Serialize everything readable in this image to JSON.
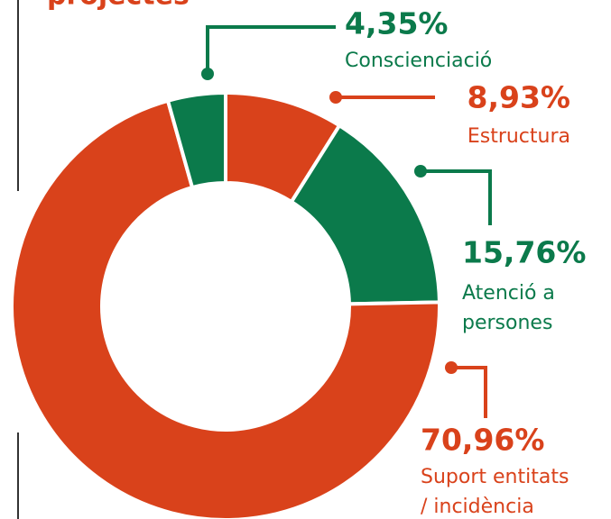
{
  "chart_data": {
    "type": "donut",
    "title": "projectes",
    "categories": [
      [
        "Estructura"
      ],
      [
        "Atenció a",
        "persones"
      ],
      [
        "Suport entitats",
        "/ incidència"
      ],
      [
        "Conscienciació"
      ]
    ],
    "values": [
      8.93,
      15.76,
      70.96,
      4.35
    ],
    "value_labels": [
      "8,93%",
      "15,76%",
      "70,96%",
      "4,35%"
    ],
    "colors": [
      "#d9421b",
      "#0b7a4b",
      "#d9421b",
      "#0b7a4b"
    ]
  }
}
